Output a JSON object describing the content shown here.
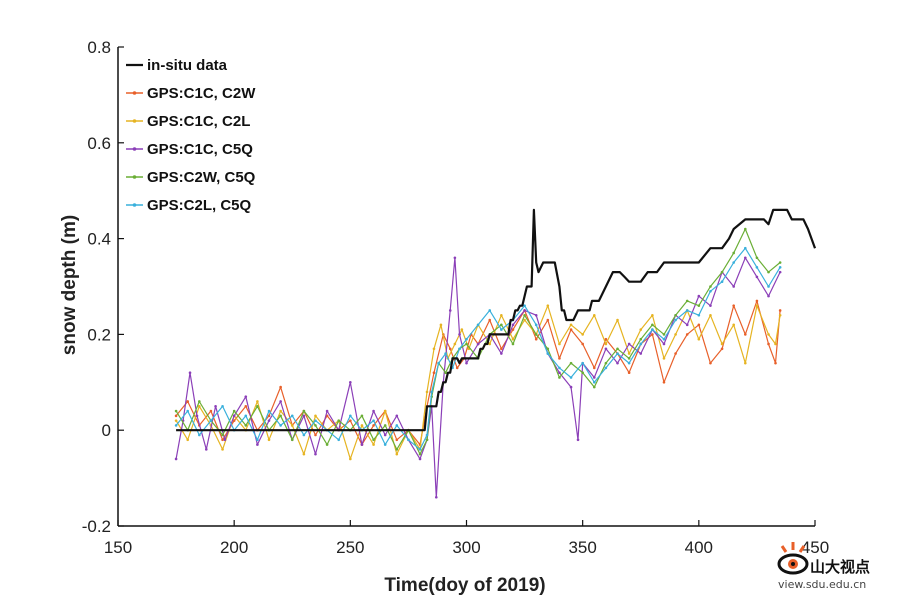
{
  "chart_data": {
    "type": "line",
    "title": "",
    "xlabel": "Time(doy of 2019)",
    "ylabel": "snow depth (m)",
    "xlim": [
      150,
      450
    ],
    "ylim": [
      -0.2,
      0.8
    ],
    "xticks": [
      150,
      200,
      250,
      300,
      350,
      400,
      450
    ],
    "yticks": [
      -0.2,
      0,
      0.2,
      0.4,
      0.6,
      0.8
    ],
    "x_tick_labels": [
      "150",
      "200",
      "250",
      "300",
      "350",
      "400",
      "450"
    ],
    "y_tick_labels": [
      "-0.2",
      "0",
      "0.2",
      "0.4",
      "0.6",
      "0.8"
    ],
    "grid": false,
    "legend_position": "top-left",
    "series": [
      {
        "name": "in-situ data",
        "color": "#111111",
        "x": [
          175,
          186,
          187,
          282,
          283,
          286,
          287,
          288,
          289,
          290,
          291,
          292,
          293,
          294,
          295,
          296,
          297,
          298,
          299,
          305,
          306,
          307,
          308,
          309,
          310,
          318,
          319,
          320,
          321,
          322,
          323,
          324,
          325,
          326,
          327,
          328,
          329,
          330,
          331,
          333,
          336,
          338,
          340,
          341,
          342,
          343,
          344,
          346,
          348,
          350,
          353,
          354,
          357,
          360,
          363,
          366,
          368,
          370,
          375,
          378,
          382,
          385,
          387,
          390,
          395,
          400,
          405,
          410,
          413,
          415,
          420,
          425,
          428,
          430,
          432,
          435,
          438,
          440,
          445,
          447,
          450
        ],
        "y": [
          0,
          0,
          0,
          0,
          0.05,
          0.05,
          0.05,
          0.08,
          0.08,
          0.1,
          0.1,
          0.12,
          0.12,
          0.15,
          0.15,
          0.15,
          0.14,
          0.15,
          0.15,
          0.15,
          0.17,
          0.17,
          0.18,
          0.18,
          0.2,
          0.2,
          0.23,
          0.23,
          0.25,
          0.25,
          0.26,
          0.26,
          0.28,
          0.3,
          0.3,
          0.3,
          0.46,
          0.35,
          0.33,
          0.35,
          0.35,
          0.35,
          0.3,
          0.25,
          0.25,
          0.23,
          0.23,
          0.23,
          0.25,
          0.25,
          0.25,
          0.27,
          0.27,
          0.3,
          0.33,
          0.33,
          0.32,
          0.31,
          0.31,
          0.33,
          0.33,
          0.35,
          0.35,
          0.35,
          0.35,
          0.35,
          0.38,
          0.38,
          0.4,
          0.42,
          0.44,
          0.44,
          0.44,
          0.43,
          0.46,
          0.46,
          0.46,
          0.44,
          0.44,
          0.42,
          0.38
        ]
      },
      {
        "name": "GPS:C1C, C2W",
        "color": "#e8602a",
        "x": [
          175,
          180,
          185,
          190,
          195,
          200,
          205,
          210,
          215,
          220,
          225,
          230,
          235,
          240,
          245,
          250,
          255,
          260,
          265,
          270,
          275,
          280,
          283,
          286,
          290,
          293,
          296,
          299,
          302,
          305,
          310,
          315,
          320,
          325,
          330,
          335,
          340,
          345,
          350,
          355,
          360,
          365,
          370,
          375,
          380,
          385,
          390,
          395,
          400,
          405,
          410,
          415,
          420,
          425,
          430,
          433,
          435
        ],
        "y": [
          0.03,
          0.06,
          0.01,
          0.04,
          -0.02,
          0.02,
          0.05,
          0.0,
          0.03,
          0.09,
          0.01,
          0.04,
          -0.01,
          0.03,
          0.0,
          0.02,
          -0.03,
          0.01,
          0.04,
          -0.02,
          0.0,
          -0.03,
          0.05,
          0.12,
          0.2,
          0.17,
          0.13,
          0.15,
          0.2,
          0.18,
          0.23,
          0.17,
          0.21,
          0.25,
          0.19,
          0.23,
          0.15,
          0.21,
          0.18,
          0.13,
          0.19,
          0.16,
          0.12,
          0.18,
          0.2,
          0.1,
          0.16,
          0.2,
          0.22,
          0.14,
          0.17,
          0.26,
          0.2,
          0.27,
          0.18,
          0.14,
          0.25
        ]
      },
      {
        "name": "GPS:C1C, C2L",
        "color": "#e6b422",
        "x": [
          175,
          180,
          185,
          190,
          195,
          200,
          205,
          210,
          215,
          220,
          225,
          230,
          235,
          240,
          245,
          250,
          255,
          260,
          265,
          270,
          275,
          280,
          283,
          286,
          289,
          292,
          295,
          298,
          301,
          305,
          310,
          315,
          320,
          325,
          330,
          335,
          340,
          345,
          350,
          355,
          360,
          365,
          370,
          375,
          380,
          385,
          390,
          395,
          400,
          405,
          410,
          415,
          420,
          425,
          430,
          433,
          435
        ],
        "y": [
          0.02,
          -0.02,
          0.05,
          0.01,
          -0.04,
          0.03,
          0.0,
          0.06,
          -0.02,
          0.04,
          0.01,
          -0.05,
          0.03,
          0.0,
          0.02,
          -0.06,
          0.01,
          -0.03,
          0.04,
          -0.05,
          0.0,
          -0.04,
          0.08,
          0.17,
          0.22,
          0.15,
          0.18,
          0.21,
          0.17,
          0.22,
          0.18,
          0.24,
          0.19,
          0.23,
          0.2,
          0.26,
          0.18,
          0.22,
          0.2,
          0.24,
          0.18,
          0.23,
          0.16,
          0.21,
          0.24,
          0.15,
          0.2,
          0.25,
          0.19,
          0.24,
          0.18,
          0.22,
          0.14,
          0.26,
          0.2,
          0.18,
          0.24
        ]
      },
      {
        "name": "GPS:C1C, C5Q",
        "color": "#8b3fb8",
        "x": [
          175,
          178,
          181,
          184,
          188,
          192,
          196,
          200,
          205,
          210,
          215,
          220,
          225,
          230,
          235,
          240,
          245,
          250,
          255,
          260,
          265,
          270,
          275,
          280,
          283,
          285,
          287,
          290,
          293,
          295,
          297,
          300,
          305,
          310,
          315,
          320,
          325,
          330,
          335,
          340,
          345,
          348,
          350,
          355,
          360,
          365,
          370,
          375,
          380,
          385,
          390,
          395,
          400,
          405,
          410,
          415,
          420,
          425,
          430,
          435
        ],
        "y": [
          -0.06,
          0.02,
          0.12,
          0.03,
          -0.04,
          0.05,
          -0.02,
          0.03,
          0.07,
          -0.03,
          0.02,
          0.06,
          -0.02,
          0.03,
          -0.05,
          0.04,
          0.0,
          0.1,
          -0.03,
          0.04,
          -0.01,
          0.03,
          -0.02,
          -0.06,
          -0.02,
          0.05,
          -0.14,
          0.1,
          0.25,
          0.36,
          0.2,
          0.14,
          0.18,
          0.2,
          0.16,
          0.22,
          0.25,
          0.24,
          0.16,
          0.12,
          0.09,
          -0.02,
          0.14,
          0.11,
          0.17,
          0.14,
          0.18,
          0.16,
          0.21,
          0.18,
          0.24,
          0.22,
          0.28,
          0.26,
          0.33,
          0.3,
          0.36,
          0.32,
          0.28,
          0.33
        ]
      },
      {
        "name": "GPS:C2W, C5Q",
        "color": "#6aae35",
        "x": [
          175,
          180,
          185,
          190,
          195,
          200,
          205,
          210,
          215,
          220,
          225,
          230,
          235,
          240,
          245,
          250,
          255,
          260,
          265,
          270,
          275,
          280,
          283,
          285,
          288,
          291,
          294,
          297,
          300,
          305,
          310,
          315,
          320,
          325,
          330,
          335,
          340,
          345,
          350,
          355,
          360,
          365,
          370,
          375,
          380,
          385,
          390,
          395,
          400,
          405,
          410,
          415,
          420,
          425,
          430,
          435
        ],
        "y": [
          0.04,
          0.0,
          0.06,
          0.02,
          -0.01,
          0.04,
          0.01,
          0.05,
          0.0,
          0.03,
          -0.02,
          0.04,
          0.01,
          -0.03,
          0.02,
          0.0,
          0.03,
          -0.02,
          0.01,
          -0.04,
          0.0,
          -0.05,
          -0.02,
          0.07,
          0.14,
          0.12,
          0.15,
          0.17,
          0.18,
          0.15,
          0.2,
          0.22,
          0.18,
          0.24,
          0.2,
          0.17,
          0.11,
          0.14,
          0.12,
          0.09,
          0.14,
          0.17,
          0.15,
          0.19,
          0.22,
          0.2,
          0.24,
          0.27,
          0.26,
          0.3,
          0.33,
          0.37,
          0.42,
          0.36,
          0.33,
          0.35
        ]
      },
      {
        "name": "GPS:C2L, C5Q",
        "color": "#39b0dc",
        "x": [
          175,
          180,
          185,
          190,
          195,
          200,
          205,
          210,
          215,
          220,
          225,
          230,
          235,
          240,
          245,
          250,
          255,
          260,
          265,
          270,
          275,
          280,
          283,
          285,
          288,
          291,
          294,
          297,
          300,
          305,
          310,
          315,
          320,
          325,
          330,
          335,
          340,
          345,
          350,
          355,
          360,
          365,
          370,
          375,
          380,
          385,
          390,
          395,
          400,
          405,
          410,
          415,
          420,
          425,
          430,
          435
        ],
        "y": [
          0.01,
          0.04,
          -0.01,
          0.02,
          0.05,
          0.0,
          0.03,
          -0.02,
          0.04,
          0.01,
          0.03,
          -0.01,
          0.02,
          0.0,
          -0.02,
          0.03,
          0.0,
          0.02,
          -0.03,
          0.01,
          -0.02,
          -0.04,
          -0.01,
          0.08,
          0.14,
          0.16,
          0.13,
          0.17,
          0.19,
          0.22,
          0.25,
          0.21,
          0.23,
          0.26,
          0.22,
          0.16,
          0.13,
          0.11,
          0.14,
          0.1,
          0.13,
          0.16,
          0.14,
          0.18,
          0.21,
          0.19,
          0.23,
          0.25,
          0.24,
          0.29,
          0.31,
          0.35,
          0.38,
          0.34,
          0.3,
          0.34
        ]
      }
    ]
  },
  "watermark": {
    "text": "山大视点",
    "url": "view.sdu.edu.cn"
  }
}
